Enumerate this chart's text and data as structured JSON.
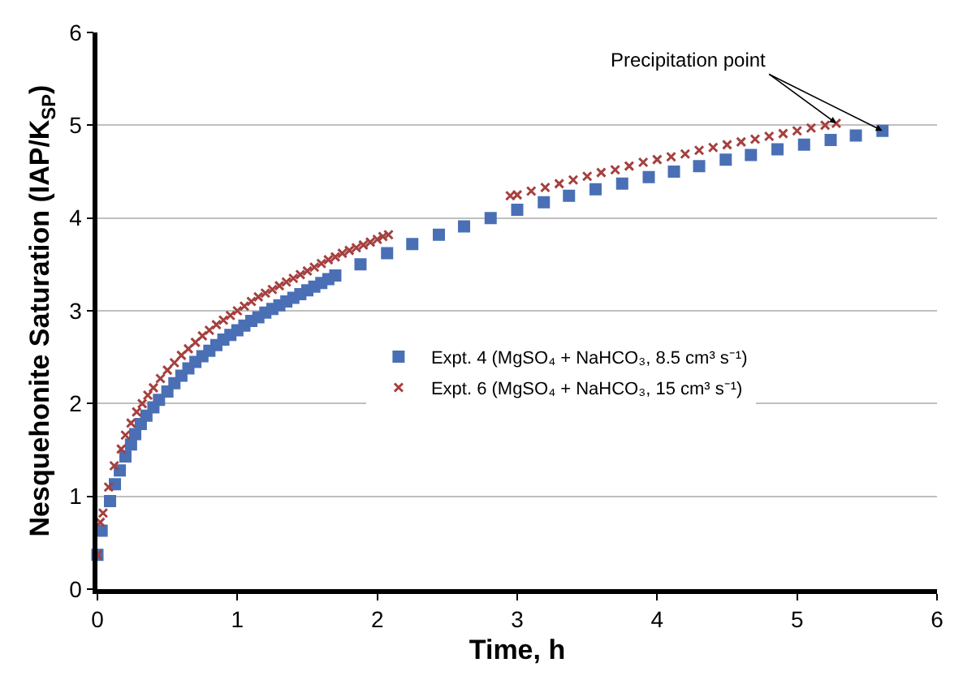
{
  "chart_data": {
    "type": "scatter",
    "xlabel": "Time, h",
    "ylabel": "Nesquehonite Saturation (IAP/K$_{SP}$)",
    "xlim": [
      0,
      6
    ],
    "xticks": [
      0,
      1,
      2,
      3,
      4,
      5,
      6
    ],
    "ylim": [
      0,
      6
    ],
    "yticks": [
      0,
      1,
      2,
      3,
      4,
      5,
      6
    ],
    "grid": "y",
    "legend": "right",
    "annotations": [
      {
        "text": "Precipitation point",
        "x": 5.61,
        "y": 4.94
      }
    ],
    "series": [
      {
        "name": "Expt. 4 (MgSO₄ + NaHCO₃, 8.5 cm³ s⁻¹)",
        "color": "#4a6fb5",
        "marker": "square",
        "x": [
          0,
          0.03,
          0.09,
          0.125,
          0.16,
          0.2,
          0.24,
          0.27,
          0.31,
          0.35,
          0.4,
          0.44,
          0.5,
          0.55,
          0.6,
          0.65,
          0.7,
          0.75,
          0.8,
          0.85,
          0.9,
          0.95,
          1.0,
          1.05,
          1.1,
          1.15,
          1.2,
          1.25,
          1.3,
          1.35,
          1.4,
          1.45,
          1.5,
          1.55,
          1.6,
          1.65,
          1.7,
          1.88,
          2.07,
          2.25,
          2.44,
          2.62,
          2.81,
          3.0,
          3.19,
          3.37,
          3.56,
          3.75,
          3.94,
          4.12,
          4.3,
          4.49,
          4.67,
          4.86,
          5.05,
          5.24,
          5.42,
          5.61
        ],
        "values": [
          0.37,
          0.63,
          0.95,
          1.13,
          1.28,
          1.43,
          1.56,
          1.67,
          1.78,
          1.87,
          1.96,
          2.04,
          2.13,
          2.22,
          2.3,
          2.38,
          2.45,
          2.51,
          2.57,
          2.63,
          2.69,
          2.74,
          2.79,
          2.84,
          2.89,
          2.93,
          2.98,
          3.02,
          3.06,
          3.1,
          3.14,
          3.18,
          3.22,
          3.26,
          3.3,
          3.34,
          3.38,
          3.5,
          3.62,
          3.72,
          3.82,
          3.91,
          4.0,
          4.09,
          4.17,
          4.24,
          4.31,
          4.37,
          4.44,
          4.5,
          4.56,
          4.63,
          4.68,
          4.74,
          4.79,
          4.84,
          4.89,
          4.94
        ]
      },
      {
        "name": "Expt. 6 (MgSO₄ + NaHCO₃, 15 cm³ s⁻¹)",
        "color": "#a5403f",
        "marker": "cross",
        "x": [
          0,
          0.02,
          0.04,
          0.08,
          0.12,
          0.17,
          0.2,
          0.24,
          0.28,
          0.32,
          0.36,
          0.4,
          0.45,
          0.5,
          0.55,
          0.6,
          0.65,
          0.7,
          0.75,
          0.8,
          0.85,
          0.9,
          0.95,
          1.0,
          1.05,
          1.1,
          1.15,
          1.2,
          1.25,
          1.3,
          1.35,
          1.4,
          1.45,
          1.5,
          1.55,
          1.6,
          1.65,
          1.7,
          1.75,
          1.8,
          1.85,
          1.9,
          1.95,
          2.0,
          2.04,
          2.08,
          2.95,
          3.0,
          3.1,
          3.2,
          3.3,
          3.4,
          3.5,
          3.6,
          3.7,
          3.8,
          3.9,
          4.0,
          4.1,
          4.2,
          4.3,
          4.4,
          4.5,
          4.6,
          4.7,
          4.8,
          4.9,
          5.0,
          5.1,
          5.2,
          5.28
        ],
        "values": [
          0.37,
          0.72,
          0.82,
          1.1,
          1.33,
          1.51,
          1.66,
          1.79,
          1.91,
          2.0,
          2.09,
          2.17,
          2.27,
          2.36,
          2.44,
          2.52,
          2.59,
          2.66,
          2.73,
          2.79,
          2.85,
          2.9,
          2.95,
          3.0,
          3.05,
          3.1,
          3.15,
          3.19,
          3.23,
          3.27,
          3.31,
          3.35,
          3.39,
          3.43,
          3.47,
          3.51,
          3.55,
          3.58,
          3.62,
          3.65,
          3.68,
          3.71,
          3.74,
          3.77,
          3.8,
          3.82,
          4.24,
          4.25,
          4.29,
          4.33,
          4.37,
          4.41,
          4.45,
          4.49,
          4.52,
          4.56,
          4.6,
          4.63,
          4.66,
          4.69,
          4.73,
          4.76,
          4.79,
          4.82,
          4.85,
          4.88,
          4.91,
          4.94,
          4.97,
          5.0,
          5.02
        ]
      }
    ]
  }
}
